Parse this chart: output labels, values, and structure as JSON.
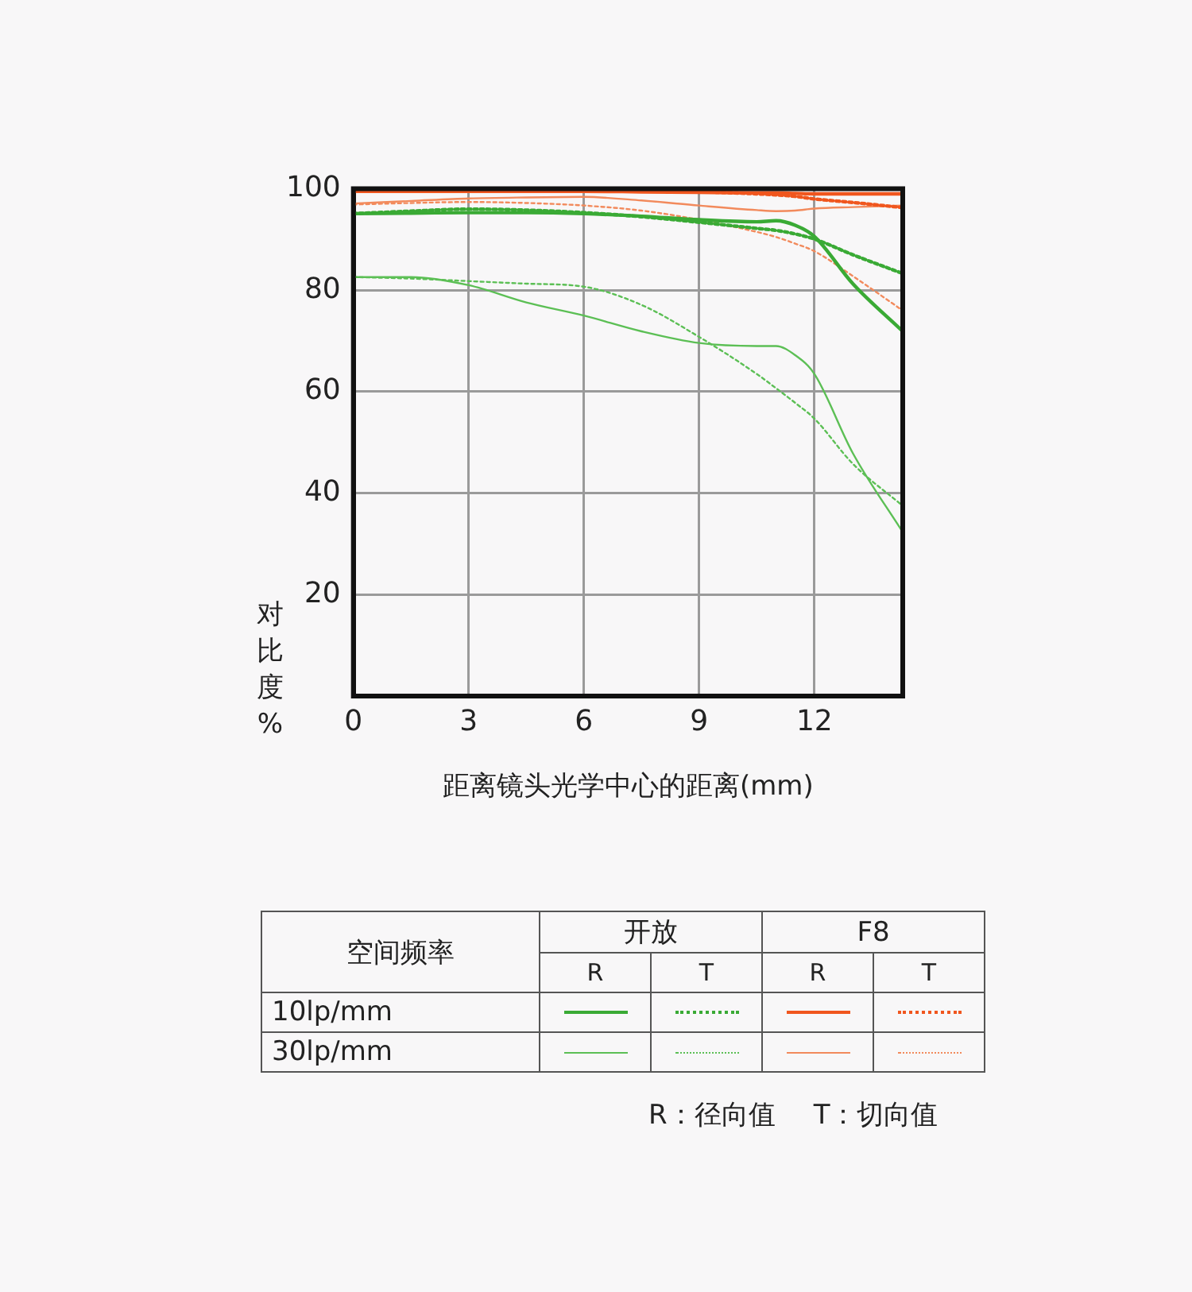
{
  "chart_data": {
    "type": "line",
    "xlabel": "距离镜头光学中心的距离(mm)",
    "ylabel": "对比度%",
    "legend_title": "空间频率",
    "x": [
      0,
      1.5,
      3,
      4.5,
      6,
      7.5,
      9,
      10.5,
      11,
      11.5,
      12,
      13,
      14.3
    ],
    "xlim": [
      0,
      14.3
    ],
    "xticks": [
      0,
      3,
      6,
      9,
      12
    ],
    "ylim": [
      0,
      100
    ],
    "yticks": [
      20,
      40,
      60,
      80,
      100
    ],
    "grid": true,
    "marker": "none",
    "series": [
      {
        "color": "#3aaa35",
        "line_style": "solid",
        "values": [
          95.1,
          95.2,
          95.3,
          95.3,
          95.1,
          94.6,
          93.9,
          93.5,
          93.7,
          92.8,
          90.6,
          81.3,
          71.9
        ]
      },
      {
        "color": "#3aaa35",
        "line_style": "dotted",
        "values": [
          95.1,
          95.6,
          96,
          95.8,
          95.3,
          94.5,
          93.4,
          92.2,
          91.8,
          91.1,
          90.1,
          87,
          83.3
        ]
      },
      {
        "color": "#f0561e",
        "line_style": "solid",
        "values": [
          99.5,
          99.5,
          99.5,
          99.5,
          99.5,
          99.4,
          99.3,
          99.2,
          99.2,
          99.1,
          99,
          99,
          99
        ]
      },
      {
        "color": "#f0561e",
        "line_style": "dotted",
        "values": [
          99.5,
          99.5,
          99.5,
          99.5,
          99.5,
          99.5,
          99.4,
          99,
          98.8,
          98.5,
          98,
          97.3,
          96.3
        ]
      },
      {
        "color": "#5cbf55",
        "line_style": "solid",
        "values": [
          82.6,
          82.6,
          81,
          77.6,
          75,
          71.9,
          69.6,
          69,
          69,
          67.2,
          63.5,
          47.9,
          32.3
        ]
      },
      {
        "color": "#5cbf55",
        "line_style": "dotted",
        "values": [
          82.6,
          82.3,
          81.8,
          81.3,
          80.7,
          77.1,
          70.8,
          63.5,
          60.7,
          57.8,
          54.7,
          45.8,
          37.5
        ]
      },
      {
        "color": "#f28a5c",
        "line_style": "solid",
        "values": [
          97.1,
          97.6,
          98.1,
          98.3,
          98.4,
          97.7,
          96.7,
          95.8,
          95.6,
          95.7,
          96.1,
          96.4,
          96.7
        ]
      },
      {
        "color": "#f28a5c",
        "line_style": "dotted",
        "values": [
          96.9,
          97.2,
          97.4,
          97.2,
          96.7,
          95.7,
          93.9,
          91.5,
          90.5,
          89.2,
          87.7,
          82.8,
          76
        ]
      }
    ],
    "annotations": [
      "开放",
      "F8",
      "R",
      "T",
      "R",
      "T",
      "10lp/mm",
      "30lp/mm",
      "R：径向值",
      "T：切向值"
    ]
  }
}
